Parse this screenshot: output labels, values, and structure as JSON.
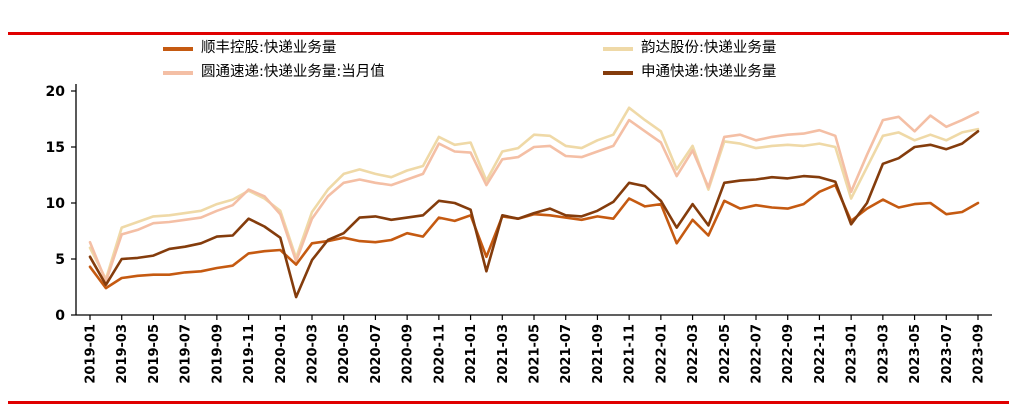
{
  "frame": {
    "background": "#ffffff",
    "rule_color": "#e00000"
  },
  "chart_data": {
    "type": "line",
    "title": "",
    "xlabel": "",
    "ylabel": "",
    "ylim": [
      0,
      20
    ],
    "y_ticks": [
      0,
      5,
      10,
      15,
      20
    ],
    "grid": false,
    "legend_position": "top",
    "axis_color": "#000000",
    "x": [
      "2019-01",
      "2019-02",
      "2019-03",
      "2019-04",
      "2019-05",
      "2019-06",
      "2019-07",
      "2019-08",
      "2019-09",
      "2019-10",
      "2019-11",
      "2019-12",
      "2020-01",
      "2020-02",
      "2020-03",
      "2020-04",
      "2020-05",
      "2020-06",
      "2020-07",
      "2020-08",
      "2020-09",
      "2020-10",
      "2020-11",
      "2020-12",
      "2021-01",
      "2021-02",
      "2021-03",
      "2021-04",
      "2021-05",
      "2021-06",
      "2021-07",
      "2021-08",
      "2021-09",
      "2021-10",
      "2021-11",
      "2021-12",
      "2022-01",
      "2022-02",
      "2022-03",
      "2022-04",
      "2022-05",
      "2022-06",
      "2022-07",
      "2022-08",
      "2022-09",
      "2022-10",
      "2022-11",
      "2022-12",
      "2023-01",
      "2023-02",
      "2023-03",
      "2023-04",
      "2023-05",
      "2023-06",
      "2023-07",
      "2023-08",
      "2023-09"
    ],
    "x_tick_labels": [
      "2019-01",
      "2019-03",
      "2019-05",
      "2019-07",
      "2019-09",
      "2019-11",
      "2020-01",
      "2020-03",
      "2020-05",
      "2020-07",
      "2020-09",
      "2020-11",
      "2021-01",
      "2021-03",
      "2021-05",
      "2021-07",
      "2021-09",
      "2021-11",
      "2022-01",
      "2022-03",
      "2022-05",
      "2022-07",
      "2022-09",
      "2022-11",
      "2023-01",
      "2023-03",
      "2023-05",
      "2023-07",
      "2023-09"
    ],
    "series": [
      {
        "id": "sf",
        "name": "顺丰控股:快递业务量",
        "color": "#c55a11",
        "z": 3,
        "values": [
          4.3,
          2.4,
          3.3,
          3.5,
          3.6,
          3.6,
          3.8,
          3.9,
          4.2,
          4.4,
          5.5,
          5.7,
          5.8,
          4.5,
          6.4,
          6.6,
          6.9,
          6.6,
          6.5,
          6.7,
          7.3,
          7.0,
          8.7,
          8.4,
          8.9,
          5.2,
          8.8,
          8.6,
          9.0,
          8.9,
          8.7,
          8.5,
          8.8,
          8.6,
          10.4,
          9.7,
          9.9,
          6.4,
          8.5,
          7.1,
          10.2,
          9.5,
          9.8,
          9.6,
          9.5,
          9.9,
          11.0,
          11.6,
          8.4,
          9.5,
          10.3,
          9.6,
          9.9,
          10.0,
          9.0,
          9.2,
          10.0
        ]
      },
      {
        "id": "yunda",
        "name": "韵达股份:快递业务量",
        "color": "#efd9a7",
        "z": 1,
        "values": [
          6.0,
          3.2,
          7.8,
          8.3,
          8.8,
          8.9,
          9.1,
          9.3,
          9.9,
          10.3,
          11.1,
          10.4,
          9.3,
          5.1,
          9.2,
          11.2,
          12.6,
          13.0,
          12.6,
          12.3,
          12.9,
          13.3,
          15.9,
          15.2,
          15.4,
          12.0,
          14.6,
          14.9,
          16.1,
          16.0,
          15.1,
          14.9,
          15.6,
          16.1,
          18.5,
          17.4,
          16.4,
          13.0,
          15.1,
          11.2,
          15.5,
          15.3,
          14.9,
          15.1,
          15.2,
          15.1,
          15.3,
          15.0,
          10.4,
          13.2,
          16.0,
          16.3,
          15.6,
          16.1,
          15.6,
          16.3,
          16.6
        ]
      },
      {
        "id": "yto",
        "name": "圆通速递:快递业务量:当月值",
        "color": "#f4bfa5",
        "z": 2,
        "values": [
          6.5,
          3.0,
          7.2,
          7.6,
          8.2,
          8.3,
          8.5,
          8.7,
          9.3,
          9.8,
          11.2,
          10.6,
          9.0,
          4.8,
          8.6,
          10.6,
          11.8,
          12.1,
          11.8,
          11.6,
          12.1,
          12.6,
          15.3,
          14.6,
          14.5,
          11.6,
          13.9,
          14.1,
          15.0,
          15.1,
          14.2,
          14.1,
          14.6,
          15.1,
          17.4,
          16.4,
          15.4,
          12.4,
          14.7,
          11.4,
          15.9,
          16.1,
          15.6,
          15.9,
          16.1,
          16.2,
          16.5,
          16.0,
          11.0,
          14.3,
          17.4,
          17.7,
          16.4,
          17.8,
          16.8,
          17.4,
          18.1
        ]
      },
      {
        "id": "sto",
        "name": "申通快递:快递业务量",
        "color": "#843c0c",
        "z": 4,
        "values": [
          5.2,
          2.7,
          5.0,
          5.1,
          5.3,
          5.9,
          6.1,
          6.4,
          7.0,
          7.1,
          8.6,
          7.9,
          6.9,
          1.6,
          4.9,
          6.7,
          7.3,
          8.7,
          8.8,
          8.5,
          8.7,
          8.9,
          10.2,
          10.0,
          9.4,
          3.9,
          8.9,
          8.6,
          9.1,
          9.5,
          8.9,
          8.8,
          9.3,
          10.1,
          11.8,
          11.5,
          10.2,
          7.8,
          9.9,
          8.0,
          11.8,
          12.0,
          12.1,
          12.3,
          12.2,
          12.4,
          12.3,
          11.9,
          8.1,
          10.0,
          13.5,
          14.0,
          15.0,
          15.2,
          14.8,
          15.3,
          16.4
        ]
      }
    ]
  }
}
